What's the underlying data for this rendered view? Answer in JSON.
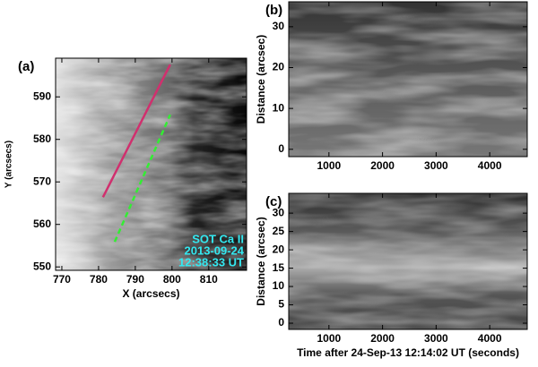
{
  "chart_data": [
    {
      "type": "image",
      "panel_label": "(a)",
      "xlabel": "X (arcsecs)",
      "ylabel": "Y (arcsecs)",
      "xlim": [
        768.3,
        820.3
      ],
      "ylim": [
        549.2,
        599.1
      ],
      "xticks": [
        770,
        780,
        790,
        800,
        810
      ],
      "yticks": [
        550,
        560,
        570,
        580,
        590
      ],
      "series": [
        {
          "color": "#d0306e",
          "style": "solid",
          "x": [
            781.2,
            799.5
          ],
          "values": [
            566.4,
            597.6
          ]
        },
        {
          "color": "#33ee33",
          "style": "dashed",
          "x": [
            784.4,
            799.5
          ],
          "values": [
            555.9,
            585.8
          ]
        }
      ],
      "annotation": [
        "SOT Ca II",
        "2013-09-24",
        "12:38:33 UT"
      ],
      "annotation_color": "#33e8f0"
    },
    {
      "type": "image",
      "panel_label": "(b)",
      "ylabel": "Distance (arcsec)",
      "xlim": [
        250,
        4700
      ],
      "ylim": [
        -1.8,
        36.1
      ],
      "xticks": [
        1000,
        2000,
        3000,
        4000
      ],
      "yticks": [
        0,
        10,
        20,
        30
      ]
    },
    {
      "type": "image",
      "panel_label": "(c)",
      "xlabel": "Time after 24-Sep-13 12:14:02 UT (seconds)",
      "ylabel": "Distance (arcsec)",
      "xlim": [
        250,
        4700
      ],
      "ylim": [
        -1.7,
        35.4
      ],
      "xticks": [
        1000,
        2000,
        3000,
        4000
      ],
      "yticks": [
        0,
        5,
        10,
        15,
        20,
        25,
        30
      ]
    }
  ]
}
